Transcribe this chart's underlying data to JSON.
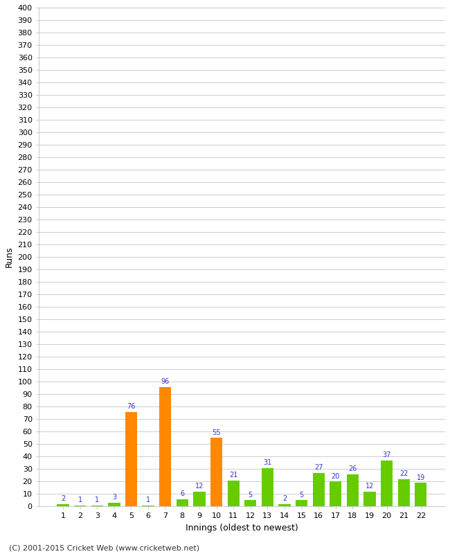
{
  "xlabel": "Innings (oldest to newest)",
  "ylabel": "Runs",
  "categories": [
    1,
    2,
    3,
    4,
    5,
    6,
    7,
    8,
    9,
    10,
    11,
    12,
    13,
    14,
    15,
    16,
    17,
    18,
    19,
    20,
    21,
    22
  ],
  "values": [
    2,
    1,
    1,
    3,
    76,
    1,
    96,
    6,
    12,
    55,
    21,
    5,
    31,
    2,
    5,
    27,
    20,
    26,
    12,
    37,
    22,
    19
  ],
  "colors": [
    "#66cc00",
    "#66cc00",
    "#66cc00",
    "#66cc00",
    "#ff8800",
    "#66cc00",
    "#ff8800",
    "#66cc00",
    "#66cc00",
    "#ff8800",
    "#66cc00",
    "#66cc00",
    "#66cc00",
    "#66cc00",
    "#66cc00",
    "#66cc00",
    "#66cc00",
    "#66cc00",
    "#66cc00",
    "#66cc00",
    "#66cc00",
    "#66cc00"
  ],
  "ylim": [
    0,
    400
  ],
  "ytick_step": 10,
  "label_color": "#3333cc",
  "footer": "(C) 2001-2015 Cricket Web (www.cricketweb.net)",
  "background_color": "#ffffff",
  "grid_color": "#cccccc",
  "axis_fontsize": 8,
  "label_fontsize": 7,
  "footer_fontsize": 8,
  "ylabel_fontsize": 9,
  "xlabel_fontsize": 9
}
